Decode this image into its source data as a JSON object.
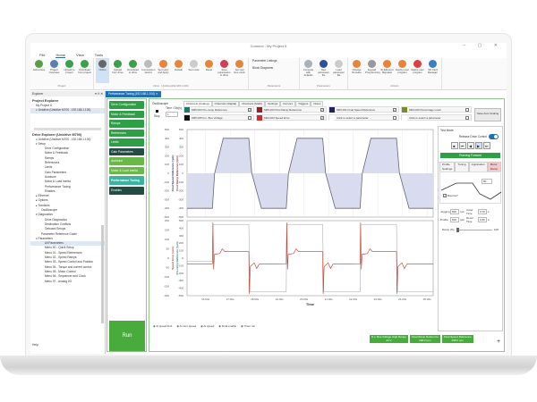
{
  "app": {
    "title": "Connect - My Project 6",
    "window_controls": "– ▢ ✕"
  },
  "menu": [
    "File",
    "Home",
    "View",
    "Tools"
  ],
  "ribbon": {
    "groups": [
      {
        "label": "Project",
        "buttons": [
          {
            "label": "Add drives",
            "color": "#5a9e4a"
          },
          {
            "label": "Project Overview",
            "color": "#5b7fb5"
          },
          {
            "label": "Upload to project",
            "color": "#3aa04a"
          },
          {
            "label": "Download from project",
            "color": "#3aa04a"
          }
        ]
      },
      {
        "label": "Drive - Unidrive(192.168.1.100)",
        "buttons": [
          {
            "label": "Online",
            "color": "#666",
            "selected": true
          },
          {
            "label": "Upload from drive",
            "color": "#3aa04a"
          },
          {
            "label": "Download to drive",
            "color": "#3aa04a"
          },
          {
            "label": "Commission wizard",
            "color": "#bbbbbb"
          },
          {
            "label": "Set motor and Apply",
            "color": "#e8843a"
          },
          {
            "label": "Default",
            "color": "#e8843a"
          },
          {
            "label": "Set mode",
            "color": "#cccccc"
          },
          {
            "label": "Reset",
            "color": "#e8843a"
          },
          {
            "label": "Save parameters to drive",
            "color": "#d04050"
          },
          {
            "label": "Set real time clock",
            "color": "#e8843a"
          }
        ]
      },
      {
        "label": "Parameters",
        "list": [
          "Parameter Listings",
          "Block Diagrams"
        ]
      },
      {
        "label": "Parameters",
        "buttons": [
          {
            "label": "Compare with defaults",
            "color": "#aab0b8"
          },
          {
            "label": "New parameter file",
            "color": "#2a4f9e"
          },
          {
            "label": "Load parameter file",
            "color": "#cccccc"
          }
        ]
      },
      {
        "label": "Actions",
        "buttons": [
          {
            "label": "Change firmware",
            "color": "#e8843a"
          },
          {
            "label": "Keypad Programming",
            "color": "#999"
          },
          {
            "label": "SI-Ethernet Migration",
            "color": "#e8843a"
          },
          {
            "label": "Deploy user program",
            "color": "#e8843a"
          },
          {
            "label": "Delete user program",
            "color": "#d94040"
          },
          {
            "label": "SD Card Manager",
            "color": "#3a7fc0"
          }
        ]
      }
    ]
  },
  "explorer": {
    "title": "Explorer",
    "controls": "▾ ⊓ ✕",
    "project_heading": "Project Explorer",
    "project": "My Project 6",
    "project_drive": "Unidrive (Unidrive M700 - 192.168.1.100)",
    "drive_heading": "Drive Explorer (Unidrive M700)",
    "drive": "Unidrive (Unidrive M700 - 192.168.1.100)",
    "tree": [
      {
        "label": "▾ Setup",
        "lvl": 1
      },
      {
        "label": "Drive Configuration",
        "lvl": 3
      },
      {
        "label": "Motor & Feedback",
        "lvl": 3
      },
      {
        "label": "Ramps",
        "lvl": 3
      },
      {
        "label": "References",
        "lvl": 3
      },
      {
        "label": "Limits",
        "lvl": 3
      },
      {
        "label": "Gain Parameters",
        "lvl": 3
      },
      {
        "label": "Autotune",
        "lvl": 3
      },
      {
        "label": "Motor & Load Inertia",
        "lvl": 3
      },
      {
        "label": "Performance Tuning",
        "lvl": 3
      },
      {
        "label": "Enables",
        "lvl": 3
      },
      {
        "label": "▸ Ethernet",
        "lvl": 1
      },
      {
        "label": "▸ Options",
        "lvl": 1
      },
      {
        "label": "▸ Solutions",
        "lvl": 1
      },
      {
        "label": "Oscilloscope",
        "lvl": 2
      },
      {
        "label": "▾ Diagnostics",
        "lvl": 1
      },
      {
        "label": "Drive Diagnostics",
        "lvl": 3
      },
      {
        "label": "Destination Conflicts",
        "lvl": 3
      },
      {
        "label": "Onboard Setups",
        "lvl": 3
      },
      {
        "label": "Parameter Reference Guide",
        "lvl": 2
      },
      {
        "label": "▾ Parameters",
        "lvl": 1
      },
      {
        "label": "All Parameters",
        "lvl": 3,
        "sel": true
      },
      {
        "label": "Menu 00 - Quick Setup",
        "lvl": 3
      },
      {
        "label": "Menu 01 - Speed References",
        "lvl": 3
      },
      {
        "label": "Menu 02 - Speed Ramps",
        "lvl": 3
      },
      {
        "label": "Menu 03 - Speed Control and Position",
        "lvl": 3
      },
      {
        "label": "Menu 04 - Torque and current control",
        "lvl": 3
      },
      {
        "label": "Menu 05 - Motor Control",
        "lvl": 3
      },
      {
        "label": "Menu 06 - Sequencer and Clock",
        "lvl": 3
      },
      {
        "label": "Menu 07 - Analog I/O",
        "lvl": 3
      }
    ],
    "help": "Help"
  },
  "doc_tab": "Performance Tuning (192.168.1.100)  ✕",
  "nav": [
    {
      "label": "Drive Configuration",
      "style": ""
    },
    {
      "label": "Motor & Feedback",
      "style": ""
    },
    {
      "label": "Ramps",
      "style": ""
    },
    {
      "label": "References",
      "style": ""
    },
    {
      "label": "Limits",
      "style": ""
    },
    {
      "label": "Gain Parameters",
      "style": "dark"
    },
    {
      "label": "Autotune",
      "style": "light"
    },
    {
      "label": "Motor & Load Inertia",
      "style": "light"
    },
    {
      "label": "Performance Tuning",
      "style": "hi"
    },
    {
      "label": "Enables",
      "style": "dark"
    }
  ],
  "run_label": "Run",
  "scope": {
    "title": "Oscilloscope",
    "stop": "Stop",
    "time_div_label": "Time / Div(s)",
    "time_div": "1",
    "tabs": [
      "Channels (Analog)",
      "Channels (Digital)",
      "Channels (Math)",
      "Settings",
      "Cursors",
      "Triggers",
      "Notes"
    ],
    "channels": [
      {
        "label": "M05.003 Pre-ramp Reference",
        "color": "#1f7a72",
        "checked": true
      },
      {
        "label": "M05.003 Post Ramp Reference",
        "color": "#8c2430",
        "checked": true
      },
      {
        "label": "M03.001 Final Speed Reference",
        "color": "#23245e",
        "checked": true
      },
      {
        "label": "M04.020 Percentage Load",
        "color": "#7d8a2a",
        "checked": false
      },
      {
        "label": "M05.005 D.c. Bus Voltage",
        "color": "#111111",
        "checked": false
      },
      {
        "label": "M03.003 Speed Error",
        "color": "#d42a2a",
        "checked": true
      },
      {
        "label": "Click to select a parameter",
        "color": "#ffffff",
        "checked": false
      },
      {
        "label": "Click to select a parameter",
        "color": "#ffffff",
        "checked": false
      }
    ],
    "autoscale": "Save Auto Scaling",
    "digital_legend": [
      "At speed limit",
      "At zero speed",
      "At speed",
      "Final enable",
      "Timer run"
    ],
    "readouts": [
      {
        "label": "D.c. Bus Voltage High Range",
        "value": "44 V"
      },
      {
        "label": "Final Ramp Reference",
        "value": "298.0 rpm"
      },
      {
        "label": "Final Speed Reference",
        "value": "298.0 rpm"
      }
    ],
    "add": "+"
  },
  "test": {
    "title": "Test Mode",
    "release": "Release Drive Control",
    "release_on": true,
    "transport": [
      "■",
      "⏮",
      "◀",
      "▶",
      "⏭"
    ],
    "status": "Running Forward",
    "tabs": [
      "Profile Settings",
      "Tuning",
      "Application",
      "Motor Ramp"
    ],
    "profile_value": "50",
    "bounce": "Bounce?",
    "jogging_label": "Jogging",
    "jogging": "500",
    "jog_unit": "rpm",
    "accel_label": "Accel Time",
    "accel": "0.70",
    "accel_unit": "s",
    "profile_label": "Profile",
    "profile": "500",
    "prof_unit": "rpm",
    "decel_label": "Decel Time",
    "decel": "0.80",
    "decel_unit": "s",
    "damp_label": "Damp (%)",
    "damp_max": "100",
    "damp_value": 0
  },
  "chart_data": [
    {
      "type": "area",
      "ylabel_outer": "Final Speed Reference (rpm)",
      "ylabel_inner": "Post Ramp Reference (rpm)",
      "xlim": [
        15.25,
        25.25
      ],
      "ylim": [
        -500,
        500
      ],
      "yticks": [
        500,
        400,
        300,
        200,
        100,
        0,
        -100,
        -200,
        -300,
        -400,
        -500
      ],
      "line_color": "#666677",
      "fill_color": "#d9dcef",
      "grid": true,
      "x": [
        15.25,
        16.28,
        16.37,
        16.72,
        17.76,
        17.88,
        18.27,
        19.28,
        19.37,
        19.72,
        20.76,
        20.88,
        21.27,
        22.28,
        22.37,
        22.72,
        23.76,
        23.88,
        24.27,
        25.25
      ],
      "y": [
        -400,
        -400,
        0,
        400,
        400,
        0,
        -400,
        -400,
        0,
        400,
        400,
        0,
        -400,
        -400,
        0,
        400,
        400,
        0,
        -400,
        -400
      ]
    },
    {
      "type": "line",
      "ylabel_outer": "Speed Error (rpm)",
      "ylabel_inner": "Pre-ramp Reference (rpm)",
      "xlabel": "Time",
      "xlim": [
        15.25,
        25.25
      ],
      "ylim_outer": [
        -200,
        200
      ],
      "ylim_inner": [
        -500,
        500
      ],
      "yticks_outer": [
        200,
        150,
        100,
        50,
        0,
        -50,
        -100,
        -150,
        -200
      ],
      "yticks_inner": [
        500,
        400,
        300,
        200,
        100,
        0,
        -100,
        -200,
        -300,
        -400,
        -500
      ],
      "xticks": [
        "16.00s",
        "17.00s",
        "18.00s",
        "19.00s",
        "20.00s",
        "21.00s",
        "22.00s",
        "23.00s",
        "24.00s",
        "25.00s"
      ],
      "xtick_values": [
        16,
        17,
        18,
        19,
        20,
        21,
        22,
        23,
        24,
        25
      ],
      "grid": true,
      "series": [
        {
          "axis": "inner",
          "color": "#9aa0a8",
          "x": [
            15.25,
            16.28,
            16.3,
            17.76,
            17.8,
            19.28,
            19.3,
            20.76,
            20.8,
            22.28,
            22.3,
            23.76,
            23.8,
            25.25
          ],
          "y": [
            -40,
            -40,
            450,
            450,
            -450,
            -450,
            450,
            450,
            -450,
            -450,
            450,
            450,
            -450,
            -450
          ]
        },
        {
          "axis": "outer",
          "color": "#c0392b",
          "x": [
            15.25,
            16.28,
            16.3,
            16.33,
            16.36,
            16.58,
            16.68,
            16.78,
            17.76,
            17.78,
            17.82,
            17.98,
            18.08,
            18.18,
            19.28,
            19.3,
            19.33,
            19.36,
            19.58,
            19.68,
            19.78,
            20.76,
            20.78,
            20.82,
            20.98,
            21.08,
            21.18,
            22.28,
            22.3,
            22.33,
            22.36,
            22.58,
            22.68,
            22.78,
            23.76,
            23.78,
            23.82,
            23.98,
            24.08,
            24.18,
            25.25
          ],
          "y": [
            -30,
            -30,
            190,
            -60,
            20,
            25,
            50,
            35,
            35,
            -190,
            -45,
            -25,
            -55,
            -32,
            -30,
            190,
            -60,
            20,
            25,
            50,
            35,
            35,
            -190,
            -45,
            -25,
            -55,
            -32,
            -30,
            190,
            -60,
            20,
            25,
            50,
            35,
            35,
            -190,
            -45,
            -25,
            -55,
            -32,
            -30
          ]
        }
      ]
    }
  ]
}
